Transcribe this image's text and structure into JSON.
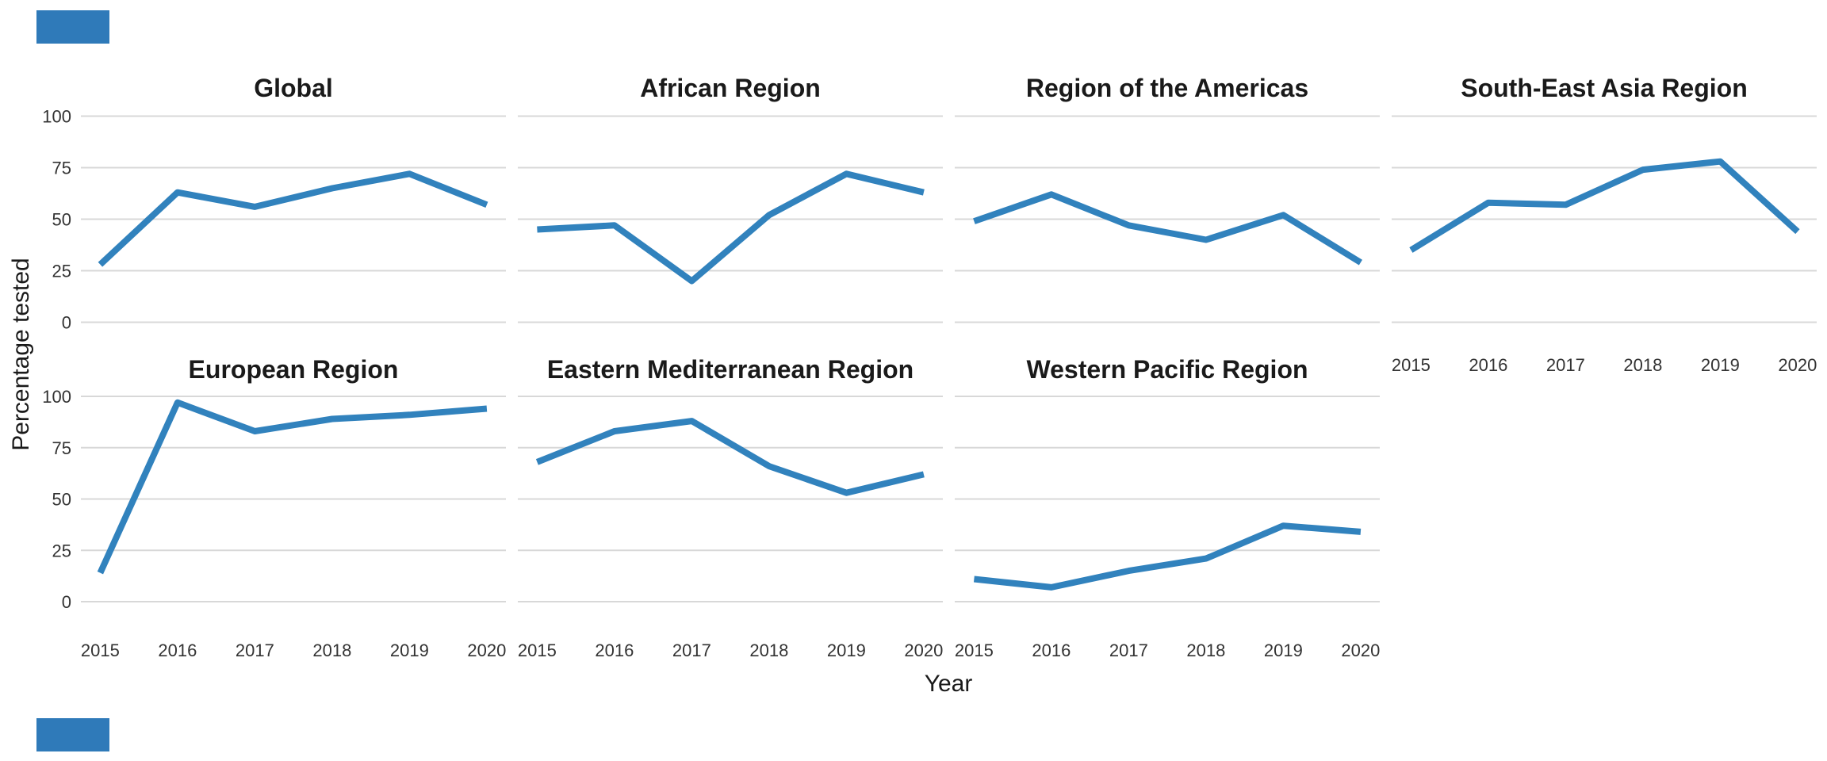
{
  "figure": {
    "kind": "faceted line chart",
    "facet_titles": [
      "Global",
      "African Region",
      "Region of the Americas",
      "South-East Asia Region",
      "European Region",
      "Eastern Mediterranean Region",
      "Western Pacific Region"
    ]
  },
  "colors": {
    "line_blue": "#3182bd",
    "artifact_blue": "#2f7ab9",
    "gridline_gray": "#d8d8d8",
    "tick_text": "#333333",
    "title_text": "#1a1a1a"
  },
  "chart_data": {
    "type": "line",
    "x": [
      2015,
      2016,
      2017,
      2018,
      2019,
      2020
    ],
    "x_tick_labels": [
      "2015",
      "2016",
      "2017",
      "2018",
      "2019",
      "2020"
    ],
    "xlabel": "Year",
    "ylabel": "Percentage tested",
    "ylim": [
      0,
      100
    ],
    "yticks": [
      0,
      25,
      50,
      75,
      100
    ],
    "grid": "horizontal major gridlines only, no panel border, white background",
    "legend": "none",
    "line_color": "#3182bd",
    "facets": [
      {
        "title": "Global",
        "row": 0,
        "col": 0,
        "values": [
          28,
          63,
          56,
          65,
          72,
          57
        ]
      },
      {
        "title": "African Region",
        "row": 0,
        "col": 1,
        "values": [
          45,
          47,
          20,
          52,
          72,
          63
        ]
      },
      {
        "title": "Region of the Americas",
        "row": 0,
        "col": 2,
        "values": [
          49,
          62,
          47,
          40,
          52,
          29
        ]
      },
      {
        "title": "South-East Asia Region",
        "row": 0,
        "col": 3,
        "values": [
          35,
          58,
          57,
          74,
          78,
          44
        ]
      },
      {
        "title": "European Region",
        "row": 1,
        "col": 0,
        "values": [
          14,
          97,
          83,
          89,
          91,
          94
        ]
      },
      {
        "title": "Eastern Mediterranean Region",
        "row": 1,
        "col": 1,
        "values": [
          68,
          83,
          88,
          66,
          53,
          62
        ]
      },
      {
        "title": "Western Pacific Region",
        "row": 1,
        "col": 2,
        "values": [
          11,
          7,
          15,
          21,
          37,
          34
        ]
      }
    ]
  }
}
